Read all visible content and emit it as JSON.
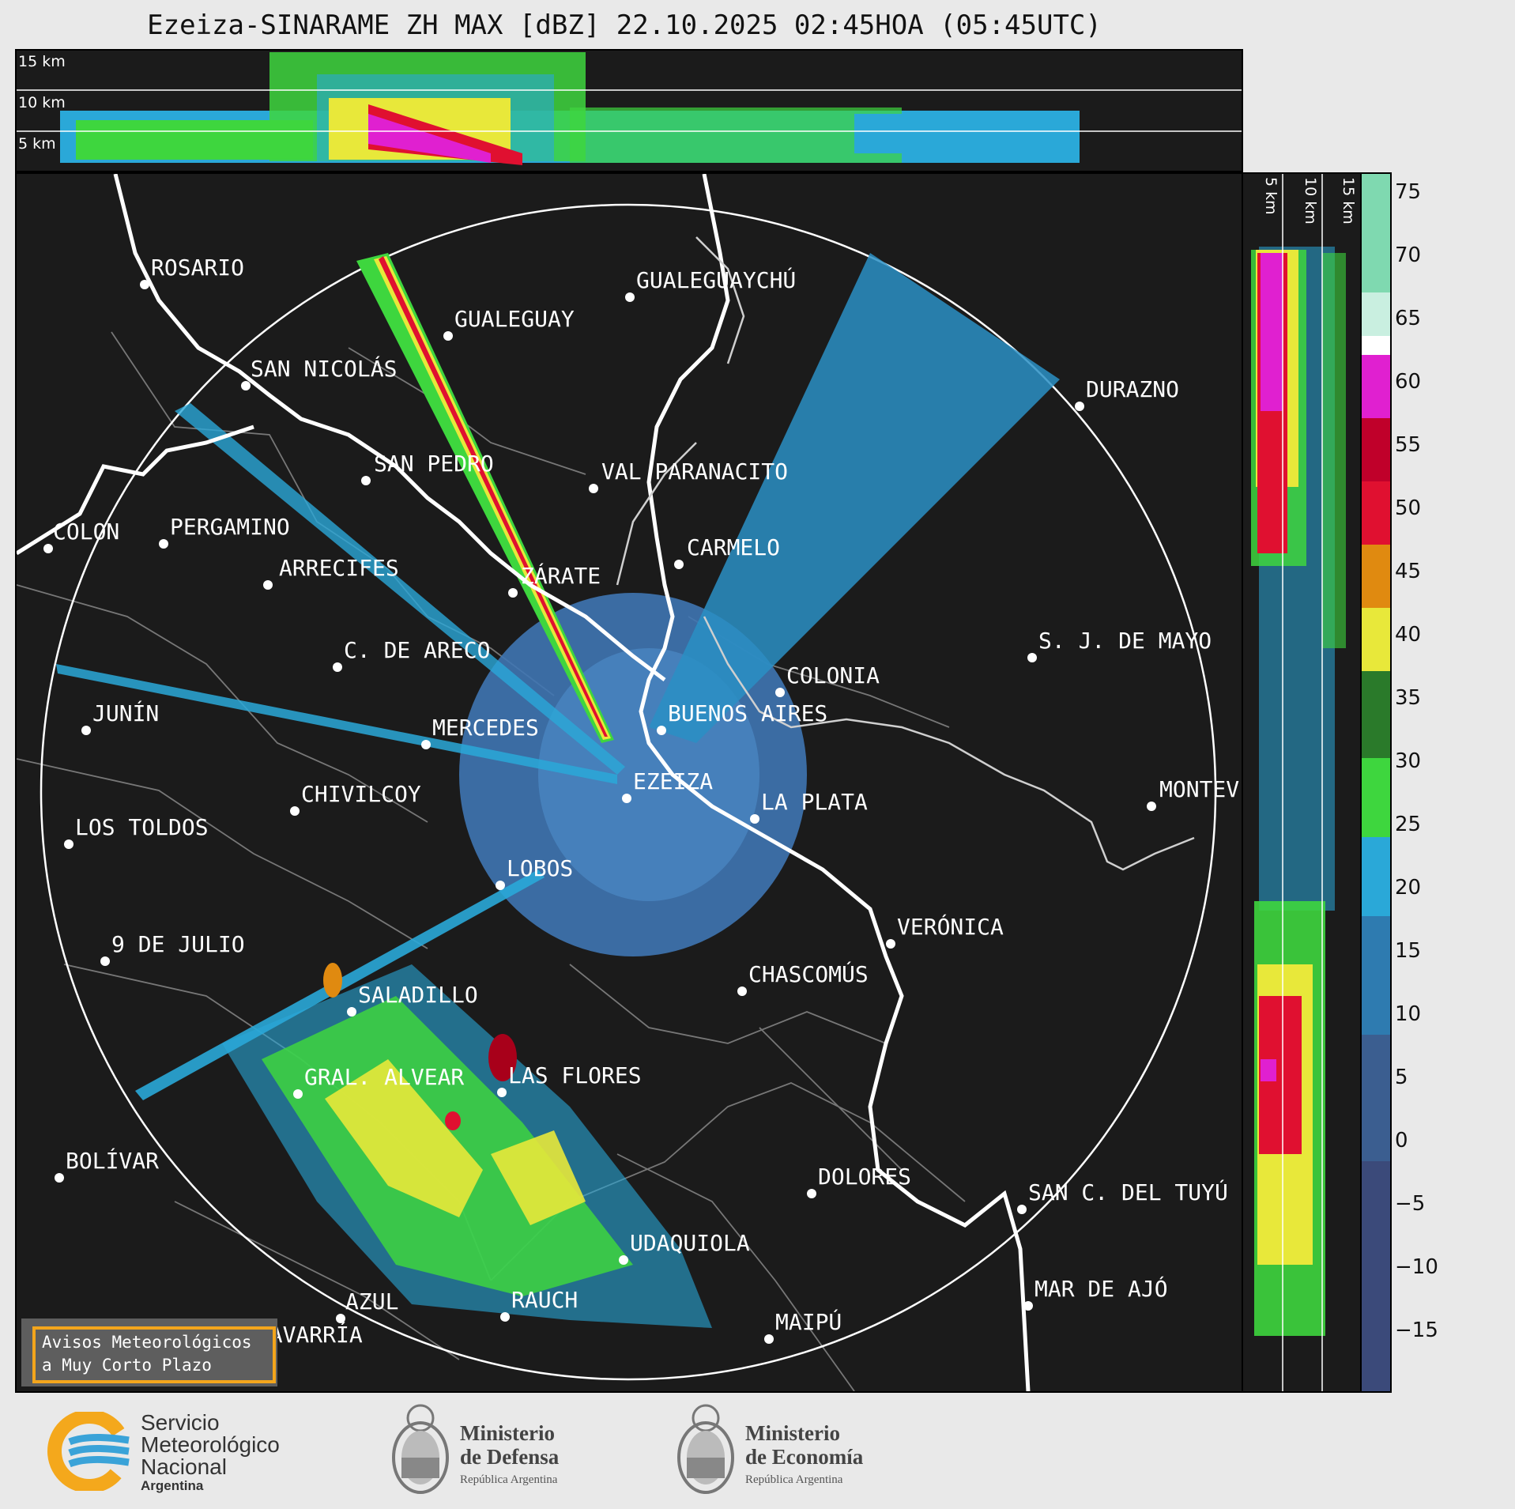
{
  "title": "Ezeiza-SINARAME ZH MAX [dBZ] 22.10.2025 02:45HOA (05:45UTC)",
  "top_panel": {
    "height_labels": [
      "15 km",
      "10 km",
      "5 km"
    ]
  },
  "side_panel": {
    "height_labels": [
      "5 km",
      "10 km",
      "15 km"
    ]
  },
  "colorbar": {
    "ticks": [
      "75",
      "70",
      "65",
      "60",
      "55",
      "50",
      "45",
      "40",
      "35",
      "30",
      "25",
      "20",
      "15",
      "10",
      "5",
      "0",
      "−5",
      "−10",
      "−15"
    ],
    "range": [
      -20,
      77
    ],
    "colors": {
      "light_green": "#7fd9b0",
      "white": "#ffffff",
      "magenta": "#e020d0",
      "dark_red": "#a8001a",
      "red": "#e01030",
      "orange": "#e08a10",
      "yellow": "#e8e83a",
      "dark_green": "#2a7a2a",
      "green": "#3ed63e",
      "cyan": "#2aa8d8",
      "blue": "#2e6fa6",
      "slate": "#3b4a7a"
    }
  },
  "cities": [
    {
      "name": "ROSARIO"
    },
    {
      "name": "GUALEGUAYCHÚ"
    },
    {
      "name": "GUALEGUAY"
    },
    {
      "name": "SAN NICOLÁS"
    },
    {
      "name": "DURAZNO"
    },
    {
      "name": "SAN PEDRO"
    },
    {
      "name": "VAL PARANACITO"
    },
    {
      "name": "COLON"
    },
    {
      "name": "PERGAMINO"
    },
    {
      "name": "CARMELO"
    },
    {
      "name": "ARRECIFES"
    },
    {
      "name": "ZÁRATE"
    },
    {
      "name": "S. J. DE MAYO"
    },
    {
      "name": "C. DE ARECO"
    },
    {
      "name": "COLONIA"
    },
    {
      "name": "JUNÍN"
    },
    {
      "name": "BUENOS AIRES"
    },
    {
      "name": "MERCEDES"
    },
    {
      "name": "EZEIZA"
    },
    {
      "name": "MONTEV"
    },
    {
      "name": "CHIVILCOY"
    },
    {
      "name": "LA PLATA"
    },
    {
      "name": "LOS TOLDOS"
    },
    {
      "name": "LOBOS"
    },
    {
      "name": "VERÓNICA"
    },
    {
      "name": "9 DE JULIO"
    },
    {
      "name": "CHASCOMÚS"
    },
    {
      "name": "SALADILLO"
    },
    {
      "name": "GRAL. ALVEAR"
    },
    {
      "name": "LAS FLORES"
    },
    {
      "name": "BOLÍVAR"
    },
    {
      "name": "DOLORES"
    },
    {
      "name": "SAN C. DEL TUYÚ"
    },
    {
      "name": "UDAQUIOLA"
    },
    {
      "name": "MAR DE AJÓ"
    },
    {
      "name": "AZUL"
    },
    {
      "name": "RAUCH"
    },
    {
      "name": "OLAVARRÍA"
    },
    {
      "name": "MAIPÚ"
    }
  ],
  "aviso": {
    "line1": "Avisos Meteorológicos",
    "line2": "a Muy Corto Plazo"
  },
  "logos": {
    "smn": {
      "line1": "Servicio",
      "line2": "Meteorológico",
      "line3": "Nacional",
      "line4": "Argentina"
    },
    "defensa": {
      "line1": "Ministerio",
      "line2": "de Defensa",
      "line3": "República Argentina"
    },
    "economia": {
      "line1": "Ministerio",
      "line2": "de Economía",
      "line3": "República Argentina"
    }
  }
}
